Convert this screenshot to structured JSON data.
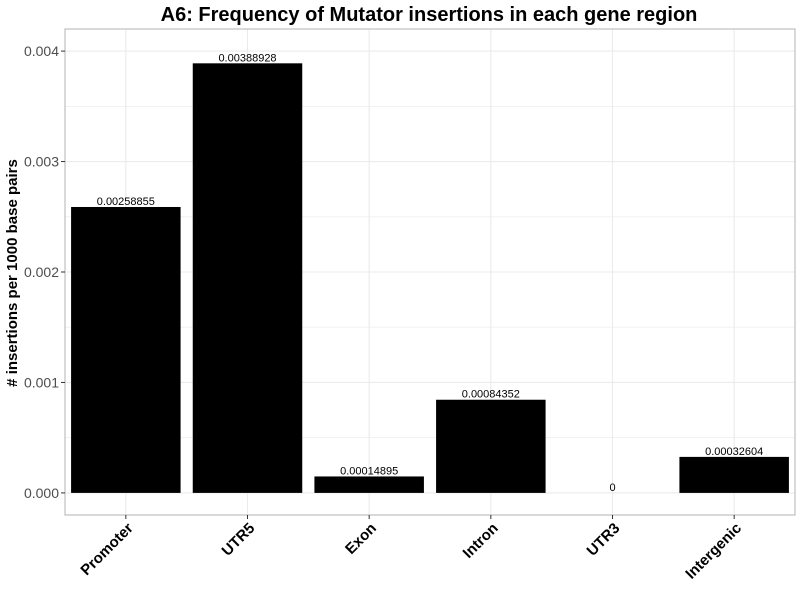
{
  "chart_data": {
    "type": "bar",
    "title": "A6: Frequency of Mutator insertions in each gene region",
    "xlabel": "",
    "ylabel": "# insertions per 1000 base pairs",
    "categories": [
      "Promoter",
      "UTR5",
      "Exon",
      "Intron",
      "UTR3",
      "Intergenic"
    ],
    "values": [
      0.00258855,
      0.00388928,
      0.00014895,
      0.00084352,
      0,
      0.00032604
    ],
    "data_labels": [
      "0.00258855",
      "0.00388928",
      "0.00014895",
      "0.00084352",
      "0",
      "0.00032604"
    ],
    "yticks": [
      "0.000",
      "0.001",
      "0.002",
      "0.003",
      "0.004"
    ],
    "ytick_values": [
      0,
      0.001,
      0.002,
      0.003,
      0.004
    ],
    "ylim": [
      -0.0002,
      0.0042
    ],
    "grid": true,
    "bar_color": "#000000",
    "grid_color": "#ebebeb",
    "border_color": "#b3b3b3"
  }
}
